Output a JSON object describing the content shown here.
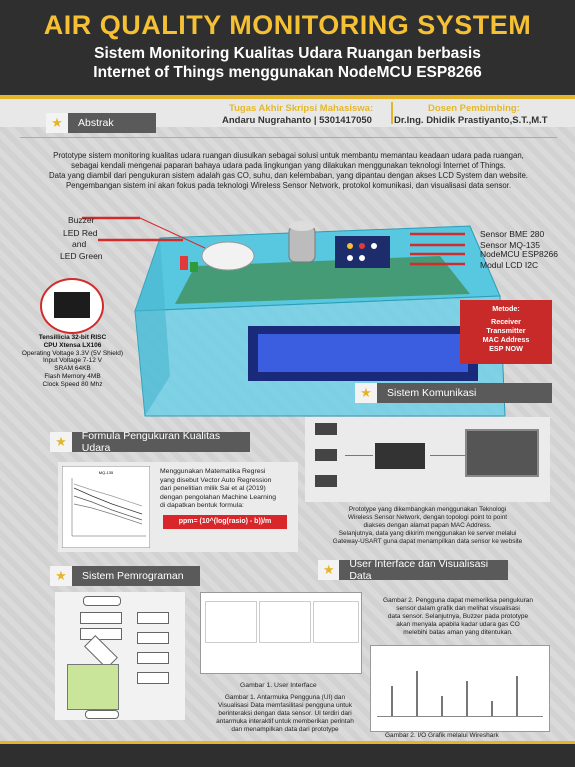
{
  "header": {
    "title": "AIR QUALITY MONITORING SYSTEM",
    "subtitle_line1": "Sistem Monitoring Kualitas Udara Ruangan berbasis",
    "subtitle_line2": "Internet of Things menggunakan NodeMCU ESP8266"
  },
  "info": {
    "student_label": "Tugas Akhir Skripsi Mahasiswa:",
    "student_value": "Andaru Nugrahanto | 5301417050",
    "advisor_label": "Dosen Pembimbing:",
    "advisor_value": "Dr.Ing. Dhidik Prastiyanto,S.T.,M.T"
  },
  "abstract": {
    "heading": "Abstrak",
    "line1": "Prototype sistem monitoring kualitas udara ruangan diusulkan sebagai solusi untuk membantu memantau keadaan udara pada ruangan,",
    "line2": "sebagai kendali mengenai paparan bahaya udara pada lingkungan yang dilakukan menggunakan teknologi Internet of Things.",
    "line3": "Data yang diambil dari pengukuran sistem adalah gas CO, suhu, dan kelembaban, yang dipantau dengan akses LCD System dan website.",
    "line4": "Pengembangan sistem ini akan fokus pada teknologi Wireless Sensor Network, protokol komunikasi, dan visualisasi data sensor."
  },
  "hardware": {
    "left_labels": [
      "Buzzer",
      "LED Red",
      "and",
      "LED Green"
    ],
    "right_labels": [
      "Sensor MQ-135",
      "Sensor BME 280",
      "NodeMCU ESP8266",
      "Modul LCD I2C"
    ],
    "cpu_title1": "Tensillicia 32-bit RISC",
    "cpu_title2": "CPU Xtensa LX106",
    "cpu_specs": [
      "Operating Voltage 3.3V (5V Shield)",
      "Input Voltage 7-12 V",
      "SRAM 64KB",
      "Flash Memory 4MB",
      "Clock Speed 80 Mhz"
    ],
    "metode_title": "Metode:",
    "metode_lines": [
      "Receiver",
      "Transmitter",
      "MAC Address",
      "ESP NOW"
    ]
  },
  "sections": {
    "komunikasi": "Sistem Komunikasi",
    "formula": "Formula Pengukuran Kualitas Udara",
    "pemrograman": "Sistem Pemrograman",
    "ui": "User Interface dan Visualisasi Data"
  },
  "komunikasi_text": {
    "line1": "Prototype yang dikembangkan menggunakan Teknologi",
    "line2": "Wireless Sensor Network, dengan topologi point to point",
    "line3": "diakses dengan alamat papan MAC Address.",
    "line4": "Selanjutnya, data yang dikirim menggunakan ke server melalui",
    "line5": "Gateway-USART guna dapat menampilkan data sensor ke website"
  },
  "formula_text": {
    "line1": "Menggunakan Matematika Regresi",
    "line2": "yang disebut Vector Auto Regression",
    "line3": "dari penelitian milik Sai et al (2019)",
    "line4": "dengan pengolahan Machine Learning",
    "line5": "di dapatkan bentuk formula:",
    "formula": "ppm= (10^(log(rasio) - b))/m",
    "chart_title": "MQ-135"
  },
  "ui_text": {
    "caption1": "Gambar 1. User Interface",
    "desc1_line1": "Gambar 1. Antarmuka Pengguna (UI) dan",
    "desc1_line2": "Visualisasi Data memfasilitasi pengguna untuk",
    "desc1_line3": "berinteraksi dengan data sensor. UI terdiri dari",
    "desc1_line4": "antarmuka interaktif untuk memberikan perintah",
    "desc1_line5": "dan menampilkan data dari prototype",
    "desc2_line1": "Gambar 2. Pengguna dapat memeriksa pengukuran",
    "desc2_line2": "sensor dalam grafik dan melihat visualisasi",
    "desc2_line3": "data sensor. Selanjutnya, Buzzer pada prototype",
    "desc2_line4": "akan menyala apabila kadar udara gas CO",
    "desc2_line5": "melebihi batas aman yang ditentukan.",
    "caption2": "Gambar 2. I/O Grafik melalui Wireshark"
  },
  "colors": {
    "accent": "#e4b52a",
    "dark": "#2f2f2f",
    "red": "#d32b2b",
    "panel": "#5a5a5a"
  }
}
